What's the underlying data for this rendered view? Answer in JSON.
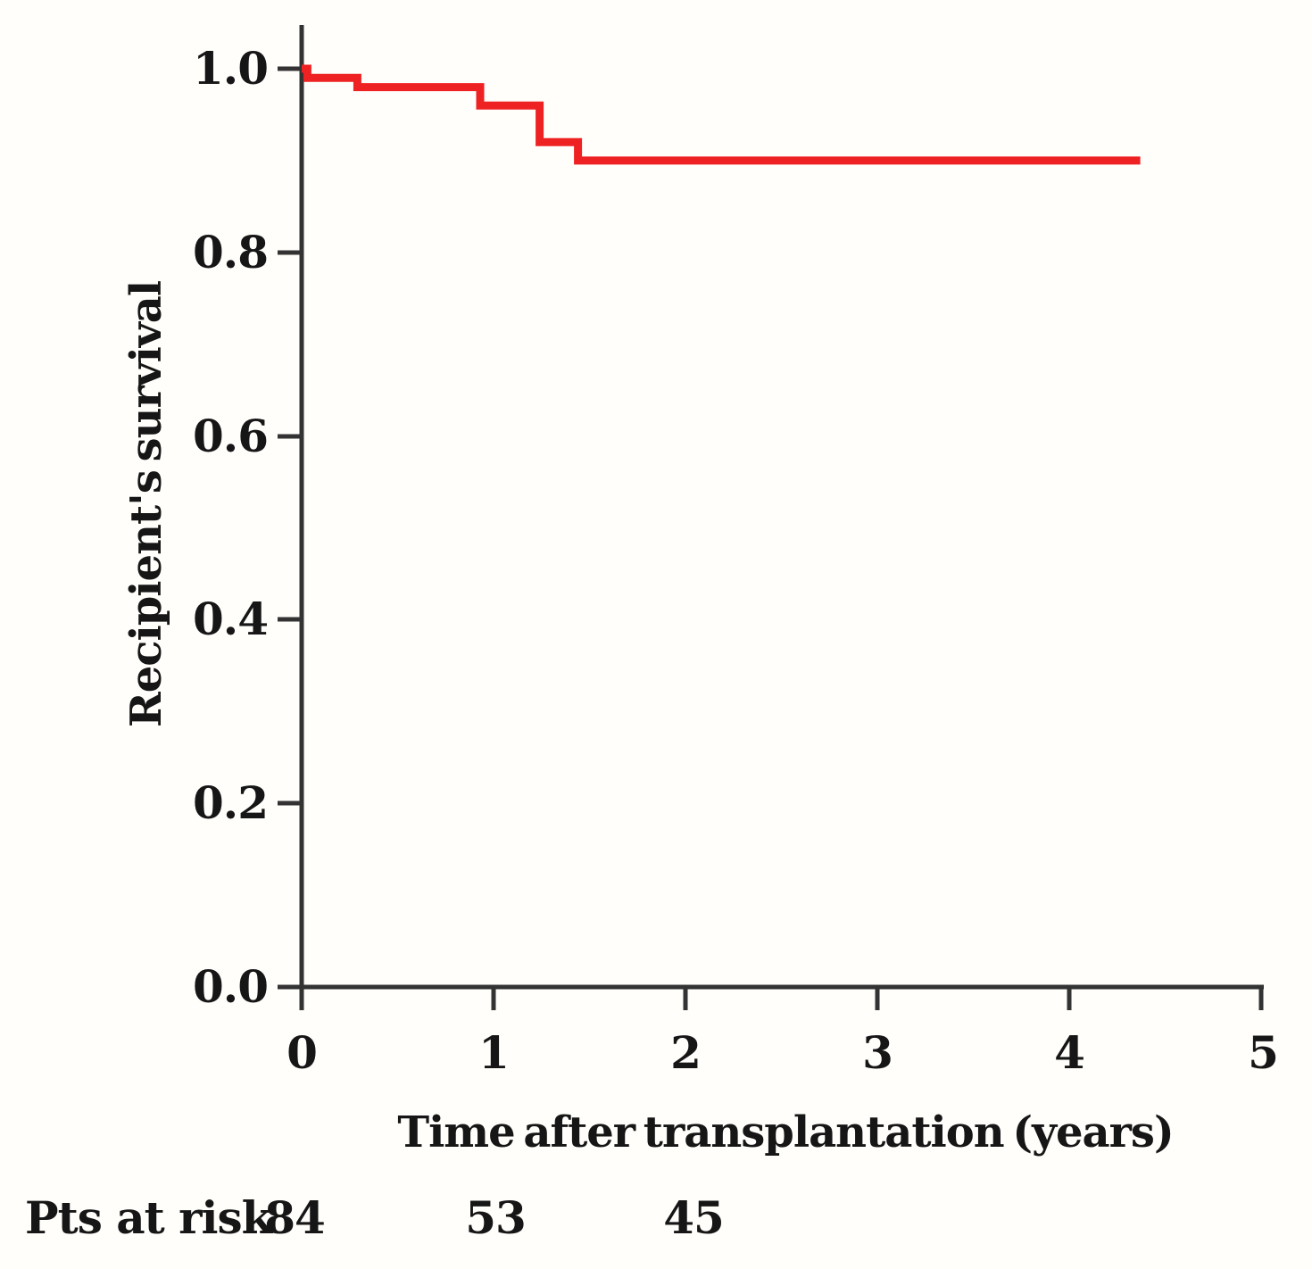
{
  "figure": {
    "background_color": "#fffefb",
    "axis_color": "#333333",
    "text_color": "#161616"
  },
  "chart_data": {
    "type": "line",
    "subtype": "kaplan-meier-step-curve",
    "title": "",
    "xlabel": "Time after transplantation (years)",
    "ylabel": "Recipient's survival",
    "xlim": [
      0,
      5
    ],
    "ylim": [
      0.0,
      1.05
    ],
    "grid": false,
    "legend": null,
    "xticks": [
      0,
      1,
      2,
      3,
      4,
      5
    ],
    "xtick_labels": [
      "0",
      "1",
      "2",
      "3",
      "4",
      "5"
    ],
    "yticks": [
      1.0,
      0.8,
      0.6,
      0.4,
      0.2,
      0.0
    ],
    "ytick_labels": [
      "1.0",
      "0.8",
      "0.6",
      "0.4",
      "0.2",
      "0.0"
    ],
    "series": [
      {
        "name": "recipient-survival",
        "color": "#ee2222",
        "steps": [
          {
            "start": 0.0,
            "end": 0.03,
            "value": 1.0
          },
          {
            "start": 0.03,
            "end": 0.29,
            "value": 0.99
          },
          {
            "start": 0.29,
            "end": 0.93,
            "value": 0.98
          },
          {
            "start": 0.93,
            "end": 1.24,
            "value": 0.96
          },
          {
            "start": 1.24,
            "end": 1.44,
            "value": 0.92
          },
          {
            "start": 1.44,
            "end": 4.37,
            "value": 0.9
          }
        ]
      }
    ],
    "pts_at_risk": {
      "label": "Pts at risk",
      "times": [
        0,
        1,
        2
      ],
      "counts": [
        "84",
        "53",
        "45"
      ]
    }
  }
}
